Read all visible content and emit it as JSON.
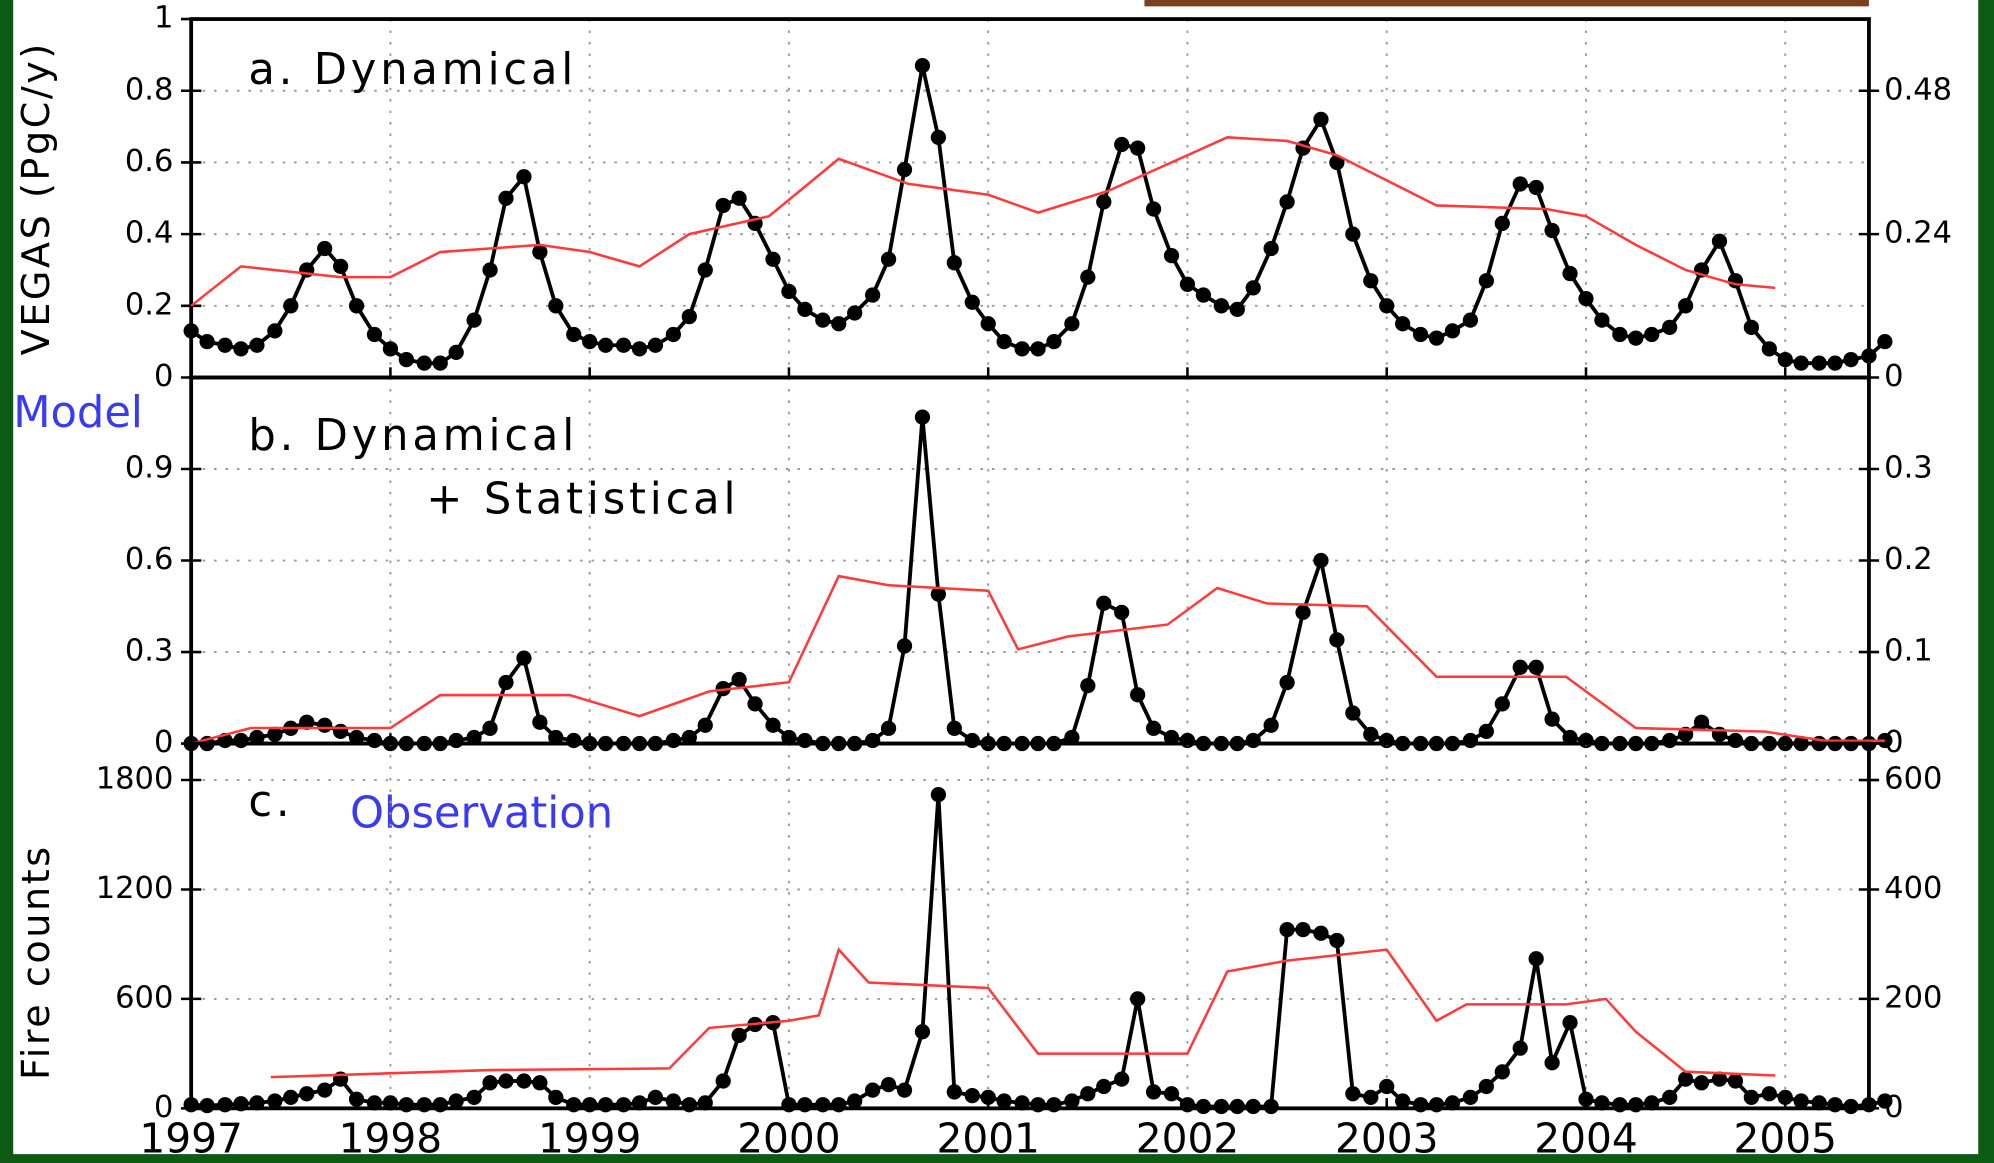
{
  "labels": {
    "model": "Model",
    "observation": "Observation"
  },
  "chart_data": [
    {
      "type": "line",
      "title": "a. Dynamical",
      "ylabel": "VEGAS (PgC/y)",
      "xlim": [
        1997,
        2005.42
      ],
      "xticks": [
        1997,
        1998,
        1999,
        2000,
        2001,
        2002,
        2003,
        2004,
        2005
      ],
      "ylim": [
        0,
        1
      ],
      "yticks": [
        0,
        0.2,
        0.4,
        0.6,
        0.8,
        1
      ],
      "y2lim": [
        0,
        0.6
      ],
      "y2ticks": [
        0,
        0.24,
        0.48
      ],
      "grid": true,
      "x": [
        1997,
        1997.08,
        1997.17,
        1997.25,
        1997.33,
        1997.42,
        1997.5,
        1997.58,
        1997.67,
        1997.75,
        1997.83,
        1997.92,
        1998,
        1998.08,
        1998.17,
        1998.25,
        1998.33,
        1998.42,
        1998.5,
        1998.58,
        1998.67,
        1998.75,
        1998.83,
        1998.92,
        1999,
        1999.08,
        1999.17,
        1999.25,
        1999.33,
        1999.42,
        1999.5,
        1999.58,
        1999.67,
        1999.75,
        1999.83,
        1999.92,
        2000,
        2000.08,
        2000.17,
        2000.25,
        2000.33,
        2000.42,
        2000.5,
        2000.58,
        2000.67,
        2000.75,
        2000.83,
        2000.92,
        2001,
        2001.08,
        2001.17,
        2001.25,
        2001.33,
        2001.42,
        2001.5,
        2001.58,
        2001.67,
        2001.75,
        2001.83,
        2001.92,
        2002,
        2002.08,
        2002.17,
        2002.25,
        2002.33,
        2002.42,
        2002.5,
        2002.58,
        2002.67,
        2002.75,
        2002.83,
        2002.92,
        2003,
        2003.08,
        2003.17,
        2003.25,
        2003.33,
        2003.42,
        2003.5,
        2003.58,
        2003.67,
        2003.75,
        2003.83,
        2003.92,
        2004,
        2004.08,
        2004.17,
        2004.25,
        2004.33,
        2004.42,
        2004.5,
        2004.58,
        2004.67,
        2004.75,
        2004.83,
        2004.92,
        2005,
        2005.08,
        2005.17,
        2005.25,
        2005.33,
        2005.42,
        2005.5
      ],
      "series": [
        {
          "color": "#000000",
          "marker": "o",
          "values": [
            0.13,
            0.1,
            0.09,
            0.08,
            0.09,
            0.13,
            0.2,
            0.3,
            0.36,
            0.31,
            0.2,
            0.12,
            0.08,
            0.05,
            0.04,
            0.04,
            0.07,
            0.16,
            0.3,
            0.5,
            0.56,
            0.35,
            0.2,
            0.12,
            0.1,
            0.09,
            0.09,
            0.08,
            0.09,
            0.12,
            0.17,
            0.3,
            0.48,
            0.5,
            0.43,
            0.33,
            0.24,
            0.19,
            0.16,
            0.15,
            0.18,
            0.23,
            0.33,
            0.58,
            0.87,
            0.67,
            0.32,
            0.21,
            0.15,
            0.1,
            0.08,
            0.08,
            0.1,
            0.15,
            0.28,
            0.49,
            0.65,
            0.64,
            0.47,
            0.34,
            0.26,
            0.23,
            0.2,
            0.19,
            0.25,
            0.36,
            0.49,
            0.64,
            0.72,
            0.6,
            0.4,
            0.27,
            0.2,
            0.15,
            0.12,
            0.11,
            0.13,
            0.16,
            0.27,
            0.43,
            0.54,
            0.53,
            0.41,
            0.29,
            0.22,
            0.16,
            0.12,
            0.11,
            0.12,
            0.14,
            0.2,
            0.3,
            0.38,
            0.27,
            0.14,
            0.08,
            0.05,
            0.04,
            0.04,
            0.04,
            0.05,
            0.06,
            0.1
          ]
        },
        {
          "color": "#ff3a3a",
          "axis": "y2",
          "x": [
            1997,
            1997.25,
            1997.75,
            1998,
            1998.25,
            1998.75,
            1999,
            1999.25,
            1999.5,
            1999.9,
            2000.25,
            2000.6,
            2001,
            2001.25,
            2001.6,
            2002,
            2002.2,
            2002.5,
            2002.75,
            2003,
            2003.25,
            2003.8,
            2004,
            2004.25,
            2004.5,
            2004.75,
            2004.95
          ],
          "values": [
            0.12,
            0.186,
            0.168,
            0.168,
            0.21,
            0.222,
            0.21,
            0.186,
            0.24,
            0.27,
            0.366,
            0.324,
            0.306,
            0.276,
            0.312,
            0.372,
            0.402,
            0.396,
            0.372,
            0.33,
            0.288,
            0.282,
            0.27,
            0.222,
            0.18,
            0.156,
            0.15
          ]
        }
      ]
    },
    {
      "type": "line",
      "title": "b. Dynamical",
      "subtitle": "+ Statistical",
      "xlim": [
        1997,
        2005.42
      ],
      "xticks": [
        1997,
        1998,
        1999,
        2000,
        2001,
        2002,
        2003,
        2004,
        2005
      ],
      "ylim": [
        0,
        1.2
      ],
      "yticks": [
        0,
        0.3,
        0.6,
        0.9
      ],
      "y2lim": [
        0,
        0.4
      ],
      "y2ticks": [
        0,
        0.1,
        0.2,
        0.3
      ],
      "grid": true,
      "x": [
        1997,
        1997.08,
        1997.17,
        1997.25,
        1997.33,
        1997.42,
        1997.5,
        1997.58,
        1997.67,
        1997.75,
        1997.83,
        1997.92,
        1998,
        1998.08,
        1998.17,
        1998.25,
        1998.33,
        1998.42,
        1998.5,
        1998.58,
        1998.67,
        1998.75,
        1998.83,
        1998.92,
        1999,
        1999.08,
        1999.17,
        1999.25,
        1999.33,
        1999.42,
        1999.5,
        1999.58,
        1999.67,
        1999.75,
        1999.83,
        1999.92,
        2000,
        2000.08,
        2000.17,
        2000.25,
        2000.33,
        2000.42,
        2000.5,
        2000.58,
        2000.67,
        2000.75,
        2000.83,
        2000.92,
        2001,
        2001.08,
        2001.17,
        2001.25,
        2001.33,
        2001.42,
        2001.5,
        2001.58,
        2001.67,
        2001.75,
        2001.83,
        2001.92,
        2002,
        2002.08,
        2002.17,
        2002.25,
        2002.33,
        2002.42,
        2002.5,
        2002.58,
        2002.67,
        2002.75,
        2002.83,
        2002.92,
        2003,
        2003.08,
        2003.17,
        2003.25,
        2003.33,
        2003.42,
        2003.5,
        2003.58,
        2003.67,
        2003.75,
        2003.83,
        2003.92,
        2004,
        2004.08,
        2004.17,
        2004.25,
        2004.33,
        2004.42,
        2004.5,
        2004.58,
        2004.67,
        2004.75,
        2004.83,
        2004.92,
        2005,
        2005.08,
        2005.17,
        2005.25,
        2005.33,
        2005.42,
        2005.5
      ],
      "series": [
        {
          "color": "#000000",
          "marker": "o",
          "values": [
            0,
            0,
            0.01,
            0.01,
            0.02,
            0.03,
            0.05,
            0.07,
            0.06,
            0.04,
            0.02,
            0.01,
            0,
            0,
            0,
            0,
            0.01,
            0.02,
            0.05,
            0.2,
            0.28,
            0.07,
            0.02,
            0.01,
            0,
            0,
            0,
            0,
            0,
            0.01,
            0.02,
            0.06,
            0.18,
            0.21,
            0.13,
            0.06,
            0.02,
            0.01,
            0,
            0,
            0,
            0.01,
            0.05,
            0.32,
            1.07,
            0.49,
            0.05,
            0.01,
            0,
            0,
            0,
            0,
            0,
            0.02,
            0.19,
            0.46,
            0.43,
            0.16,
            0.05,
            0.02,
            0.01,
            0,
            0,
            0,
            0.01,
            0.06,
            0.2,
            0.43,
            0.6,
            0.34,
            0.1,
            0.03,
            0.01,
            0,
            0,
            0,
            0,
            0.01,
            0.04,
            0.13,
            0.25,
            0.25,
            0.08,
            0.02,
            0.01,
            0,
            0,
            0,
            0,
            0.01,
            0.03,
            0.07,
            0.03,
            0.01,
            0,
            0,
            0,
            0,
            0,
            0,
            0,
            0,
            0.01
          ]
        },
        {
          "color": "#ff3a3a",
          "axis": "y2",
          "x": [
            1997,
            1997.3,
            1997.9,
            1998,
            1998.25,
            1998.9,
            1999.25,
            1999.6,
            2000,
            2000.25,
            2000.5,
            2001,
            2001.15,
            2001.4,
            2001.9,
            2002.15,
            2002.4,
            2002.9,
            2003.25,
            2003.9,
            2004.25,
            2004.9,
            2005.2,
            2005.5
          ],
          "values": [
            0,
            0.017,
            0.017,
            0.017,
            0.053,
            0.053,
            0.03,
            0.057,
            0.067,
            0.183,
            0.173,
            0.167,
            0.103,
            0.117,
            0.13,
            0.17,
            0.153,
            0.15,
            0.073,
            0.073,
            0.017,
            0.013,
            0.003,
            0.003
          ]
        }
      ]
    },
    {
      "type": "line",
      "title": "c.",
      "ylabel": "Fire counts",
      "xlim": [
        1997,
        2005.42
      ],
      "xticks": [
        1997,
        1998,
        1999,
        2000,
        2001,
        2002,
        2003,
        2004,
        2005
      ],
      "ylim": [
        0,
        2000
      ],
      "yticks": [
        0,
        600,
        1200,
        1800
      ],
      "y2lim": [
        0,
        666.7
      ],
      "y2ticks": [
        0,
        200,
        400,
        600
      ],
      "grid": true,
      "x": [
        1997,
        1997.08,
        1997.17,
        1997.25,
        1997.33,
        1997.42,
        1997.5,
        1997.58,
        1997.67,
        1997.75,
        1997.83,
        1997.92,
        1998,
        1998.08,
        1998.17,
        1998.25,
        1998.33,
        1998.42,
        1998.5,
        1998.58,
        1998.67,
        1998.75,
        1998.83,
        1998.92,
        1999,
        1999.08,
        1999.17,
        1999.25,
        1999.33,
        1999.42,
        1999.5,
        1999.58,
        1999.67,
        1999.75,
        1999.83,
        1999.92,
        2000,
        2000.08,
        2000.17,
        2000.25,
        2000.33,
        2000.42,
        2000.5,
        2000.58,
        2000.67,
        2000.75,
        2000.83,
        2000.92,
        2001,
        2001.08,
        2001.17,
        2001.25,
        2001.33,
        2001.42,
        2001.5,
        2001.58,
        2001.67,
        2001.75,
        2001.83,
        2001.92,
        2002,
        2002.08,
        2002.17,
        2002.25,
        2002.33,
        2002.42,
        2002.5,
        2002.58,
        2002.67,
        2002.75,
        2002.83,
        2002.92,
        2003,
        2003.08,
        2003.17,
        2003.25,
        2003.33,
        2003.42,
        2003.5,
        2003.58,
        2003.67,
        2003.75,
        2003.83,
        2003.92,
        2004,
        2004.08,
        2004.17,
        2004.25,
        2004.33,
        2004.42,
        2004.5,
        2004.58,
        2004.67,
        2004.75,
        2004.83,
        2004.92,
        2005,
        2005.08,
        2005.17,
        2005.25,
        2005.33,
        2005.42,
        2005.5
      ],
      "series": [
        {
          "color": "#000000",
          "marker": "o",
          "values": [
            20,
            15,
            20,
            25,
            30,
            40,
            60,
            80,
            100,
            160,
            50,
            30,
            30,
            20,
            20,
            20,
            40,
            60,
            140,
            150,
            150,
            140,
            60,
            20,
            20,
            20,
            20,
            30,
            60,
            40,
            20,
            30,
            150,
            400,
            460,
            470,
            20,
            20,
            20,
            20,
            40,
            100,
            130,
            100,
            420,
            1720,
            90,
            70,
            60,
            40,
            30,
            20,
            20,
            40,
            80,
            120,
            160,
            600,
            90,
            80,
            20,
            10,
            10,
            10,
            10,
            10,
            980,
            980,
            960,
            920,
            80,
            60,
            120,
            40,
            20,
            20,
            30,
            60,
            120,
            200,
            330,
            820,
            250,
            470,
            50,
            30,
            20,
            20,
            30,
            60,
            160,
            140,
            160,
            150,
            60,
            80,
            60,
            40,
            30,
            20,
            10,
            20,
            40
          ]
        },
        {
          "color": "#ff3a3a",
          "axis": "y2",
          "x": [
            1997.4,
            1998.5,
            1999.4,
            1999.6,
            2000,
            2000.15,
            2000.25,
            2000.4,
            2001,
            2001.25,
            2002,
            2002.2,
            2002.5,
            2003,
            2003.25,
            2003.4,
            2003.9,
            2004.1,
            2004.25,
            2004.5,
            2004.95
          ],
          "values": [
            57,
            70,
            73,
            147,
            160,
            170,
            290,
            230,
            220,
            100,
            100,
            250,
            270,
            290,
            160,
            190,
            190,
            200,
            140,
            67,
            60
          ]
        }
      ]
    }
  ]
}
